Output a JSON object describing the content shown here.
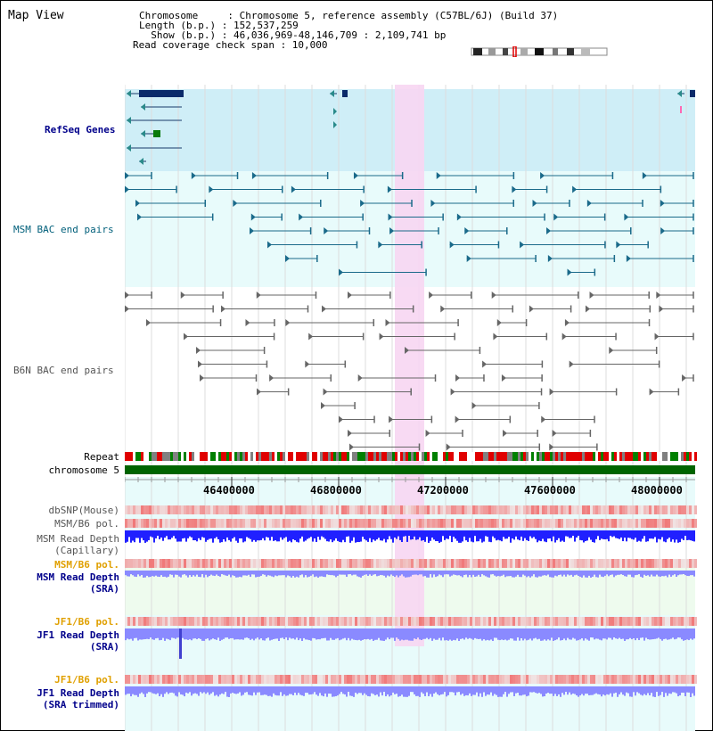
{
  "app": {
    "title": "Map View"
  },
  "info": {
    "line1": "Chromosome     : Chromosome 5, reference assembly (C57BL/6J) (Build 37)",
    "line2": "Length (b.p.) : 152,537,259",
    "line3": "  Show (b.p.) : 46,036,969-48,146,709 : 2,109,741 bp",
    "line4": "Read coverage check span : 10,000"
  },
  "tracks": {
    "refseq": "RefSeq Genes",
    "msm_bac": "MSM BAC end pairs",
    "b6n_bac": "B6N BAC end pairs",
    "repeat": "Repeat",
    "chromosome": "chromosome 5",
    "dbsnp": "dbSNP(Mouse)",
    "msm_pol": "MSM/B6 pol.",
    "msm_depth_cap_1": "MSM Read Depth",
    "msm_depth_cap_2": "(Capillary)",
    "msm_pol_sra": "MSM/B6 pol.",
    "msm_depth_sra_1": "MSM Read Depth",
    "msm_depth_sra_2": "(SRA)",
    "jf1_pol": "JF1/B6 pol.",
    "jf1_depth_1": "JF1 Read Depth",
    "jf1_depth_2": "(SRA)",
    "jf1_pol_trim": "JF1/B6 pol.",
    "jf1_trim_1": "JF1 Read Depth",
    "jf1_trim_2": "(SRA trimmed)"
  },
  "ruler": {
    "ticks": [
      "46400000",
      "46800000",
      "47200000",
      "47600000",
      "48000000"
    ]
  },
  "colors": {
    "refseq_bg": "#cfeef7",
    "track_bg": "#e8fbfb",
    "highlight": "#f7d6f2",
    "chrom_green": "#006400",
    "depth_blue": "#2020ff",
    "depth_light": "#8a8aff",
    "pol_red": "#f03030"
  }
}
